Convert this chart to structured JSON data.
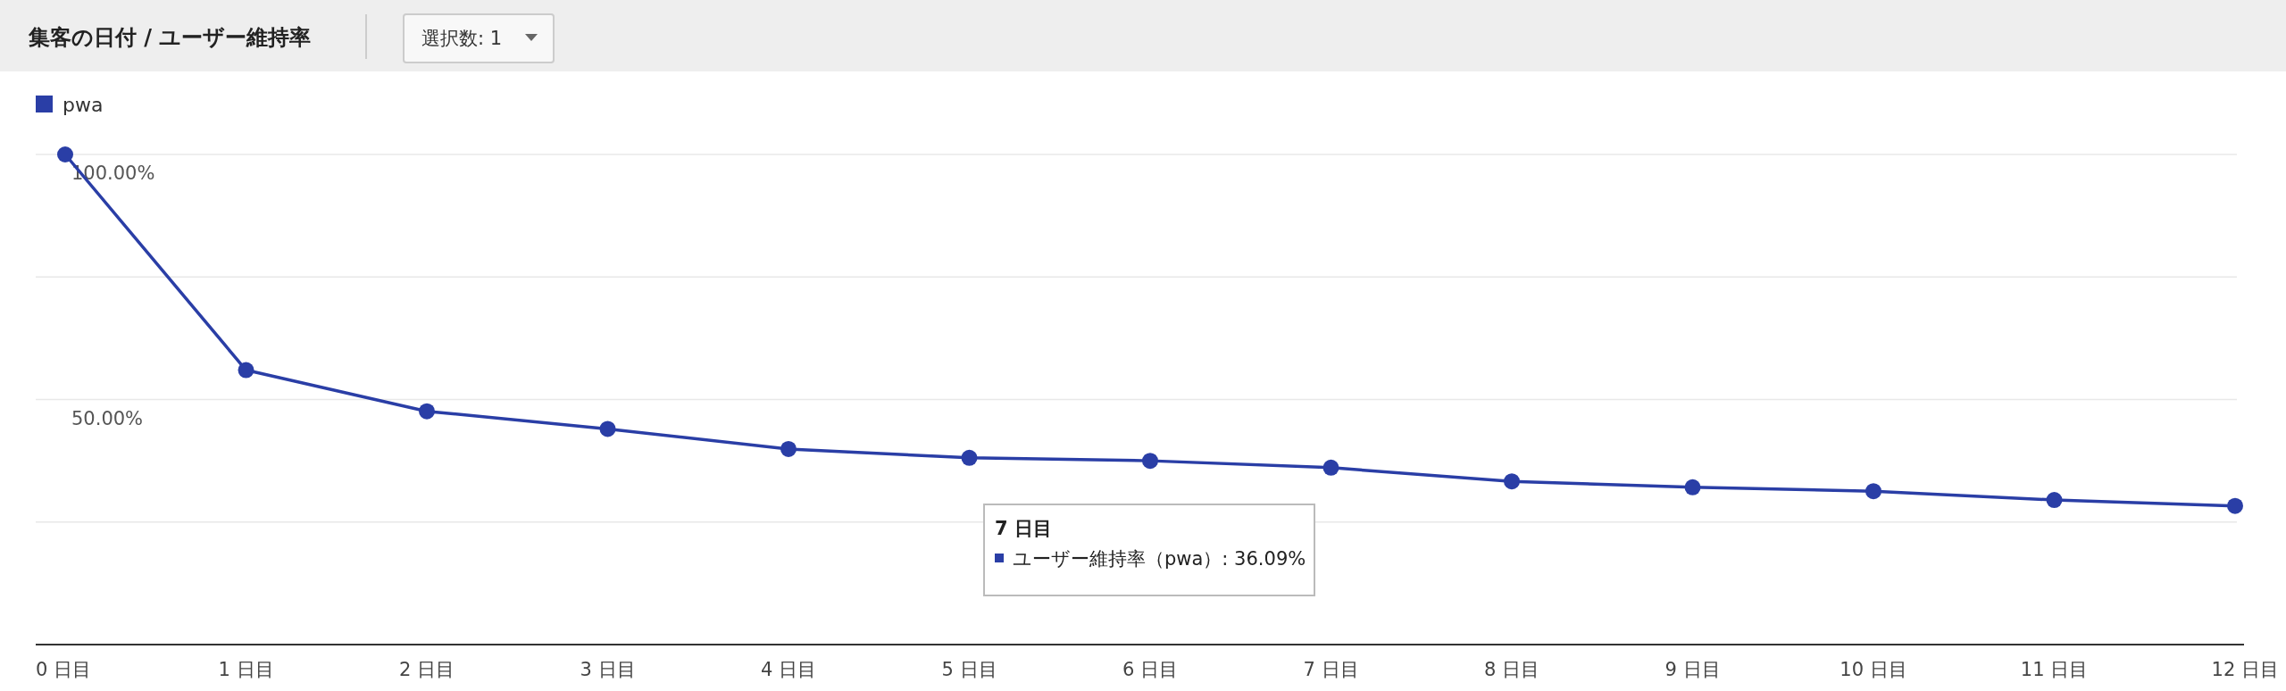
{
  "chart_data": {
    "type": "line",
    "title": "集客の日付 / ユーザー維持率",
    "categories": [
      "0 日目",
      "1 日目",
      "2 日目",
      "3 日目",
      "4 日目",
      "5 日目",
      "6 日目",
      "7 日目",
      "8 日目",
      "9 日目",
      "10 日目",
      "11 日目",
      "12 日目"
    ],
    "series": [
      {
        "name": "pwa",
        "color": "#2a3ea6",
        "values": [
          100,
          56,
          47.6,
          44,
          39.9,
          38.1,
          37.5,
          36.09,
          33.3,
          32.1,
          31.3,
          29.5,
          28.3
        ]
      }
    ],
    "ylim": [
      0,
      100
    ],
    "yticks": [
      {
        "value": 0,
        "label": null
      },
      {
        "value": 25,
        "label": null
      },
      {
        "value": 50,
        "label": "50.00%"
      },
      {
        "value": 75,
        "label": null
      },
      {
        "value": 100,
        "label": "100.00%"
      }
    ],
    "grid": "y",
    "legend": "top left",
    "marker": "circle",
    "annotations": [
      "選択数: 1",
      "7 日目",
      "ユーザー維持率（pwa）: 36.09%"
    ]
  }
}
